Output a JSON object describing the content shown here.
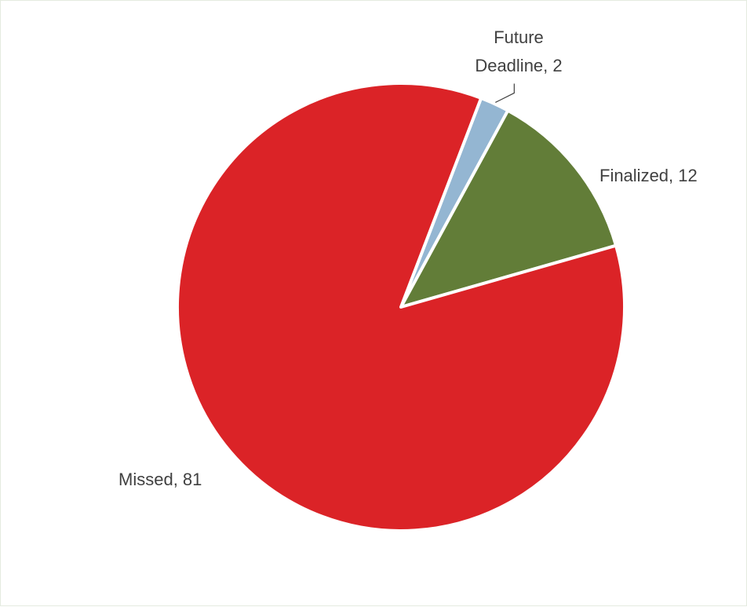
{
  "chart_data": {
    "type": "pie",
    "title": "",
    "categories": [
      "Future Deadline",
      "Finalized",
      "Missed"
    ],
    "values": [
      2,
      12,
      81
    ],
    "colors": [
      "#94b6d2",
      "#627d38",
      "#db2327"
    ],
    "data_labels": [
      {
        "category": "Future",
        "category_line2": "Deadline",
        "value": "2"
      },
      {
        "category": "Finalized",
        "value": "12"
      },
      {
        "category": "Missed",
        "value": "81"
      }
    ],
    "legend": "none"
  }
}
